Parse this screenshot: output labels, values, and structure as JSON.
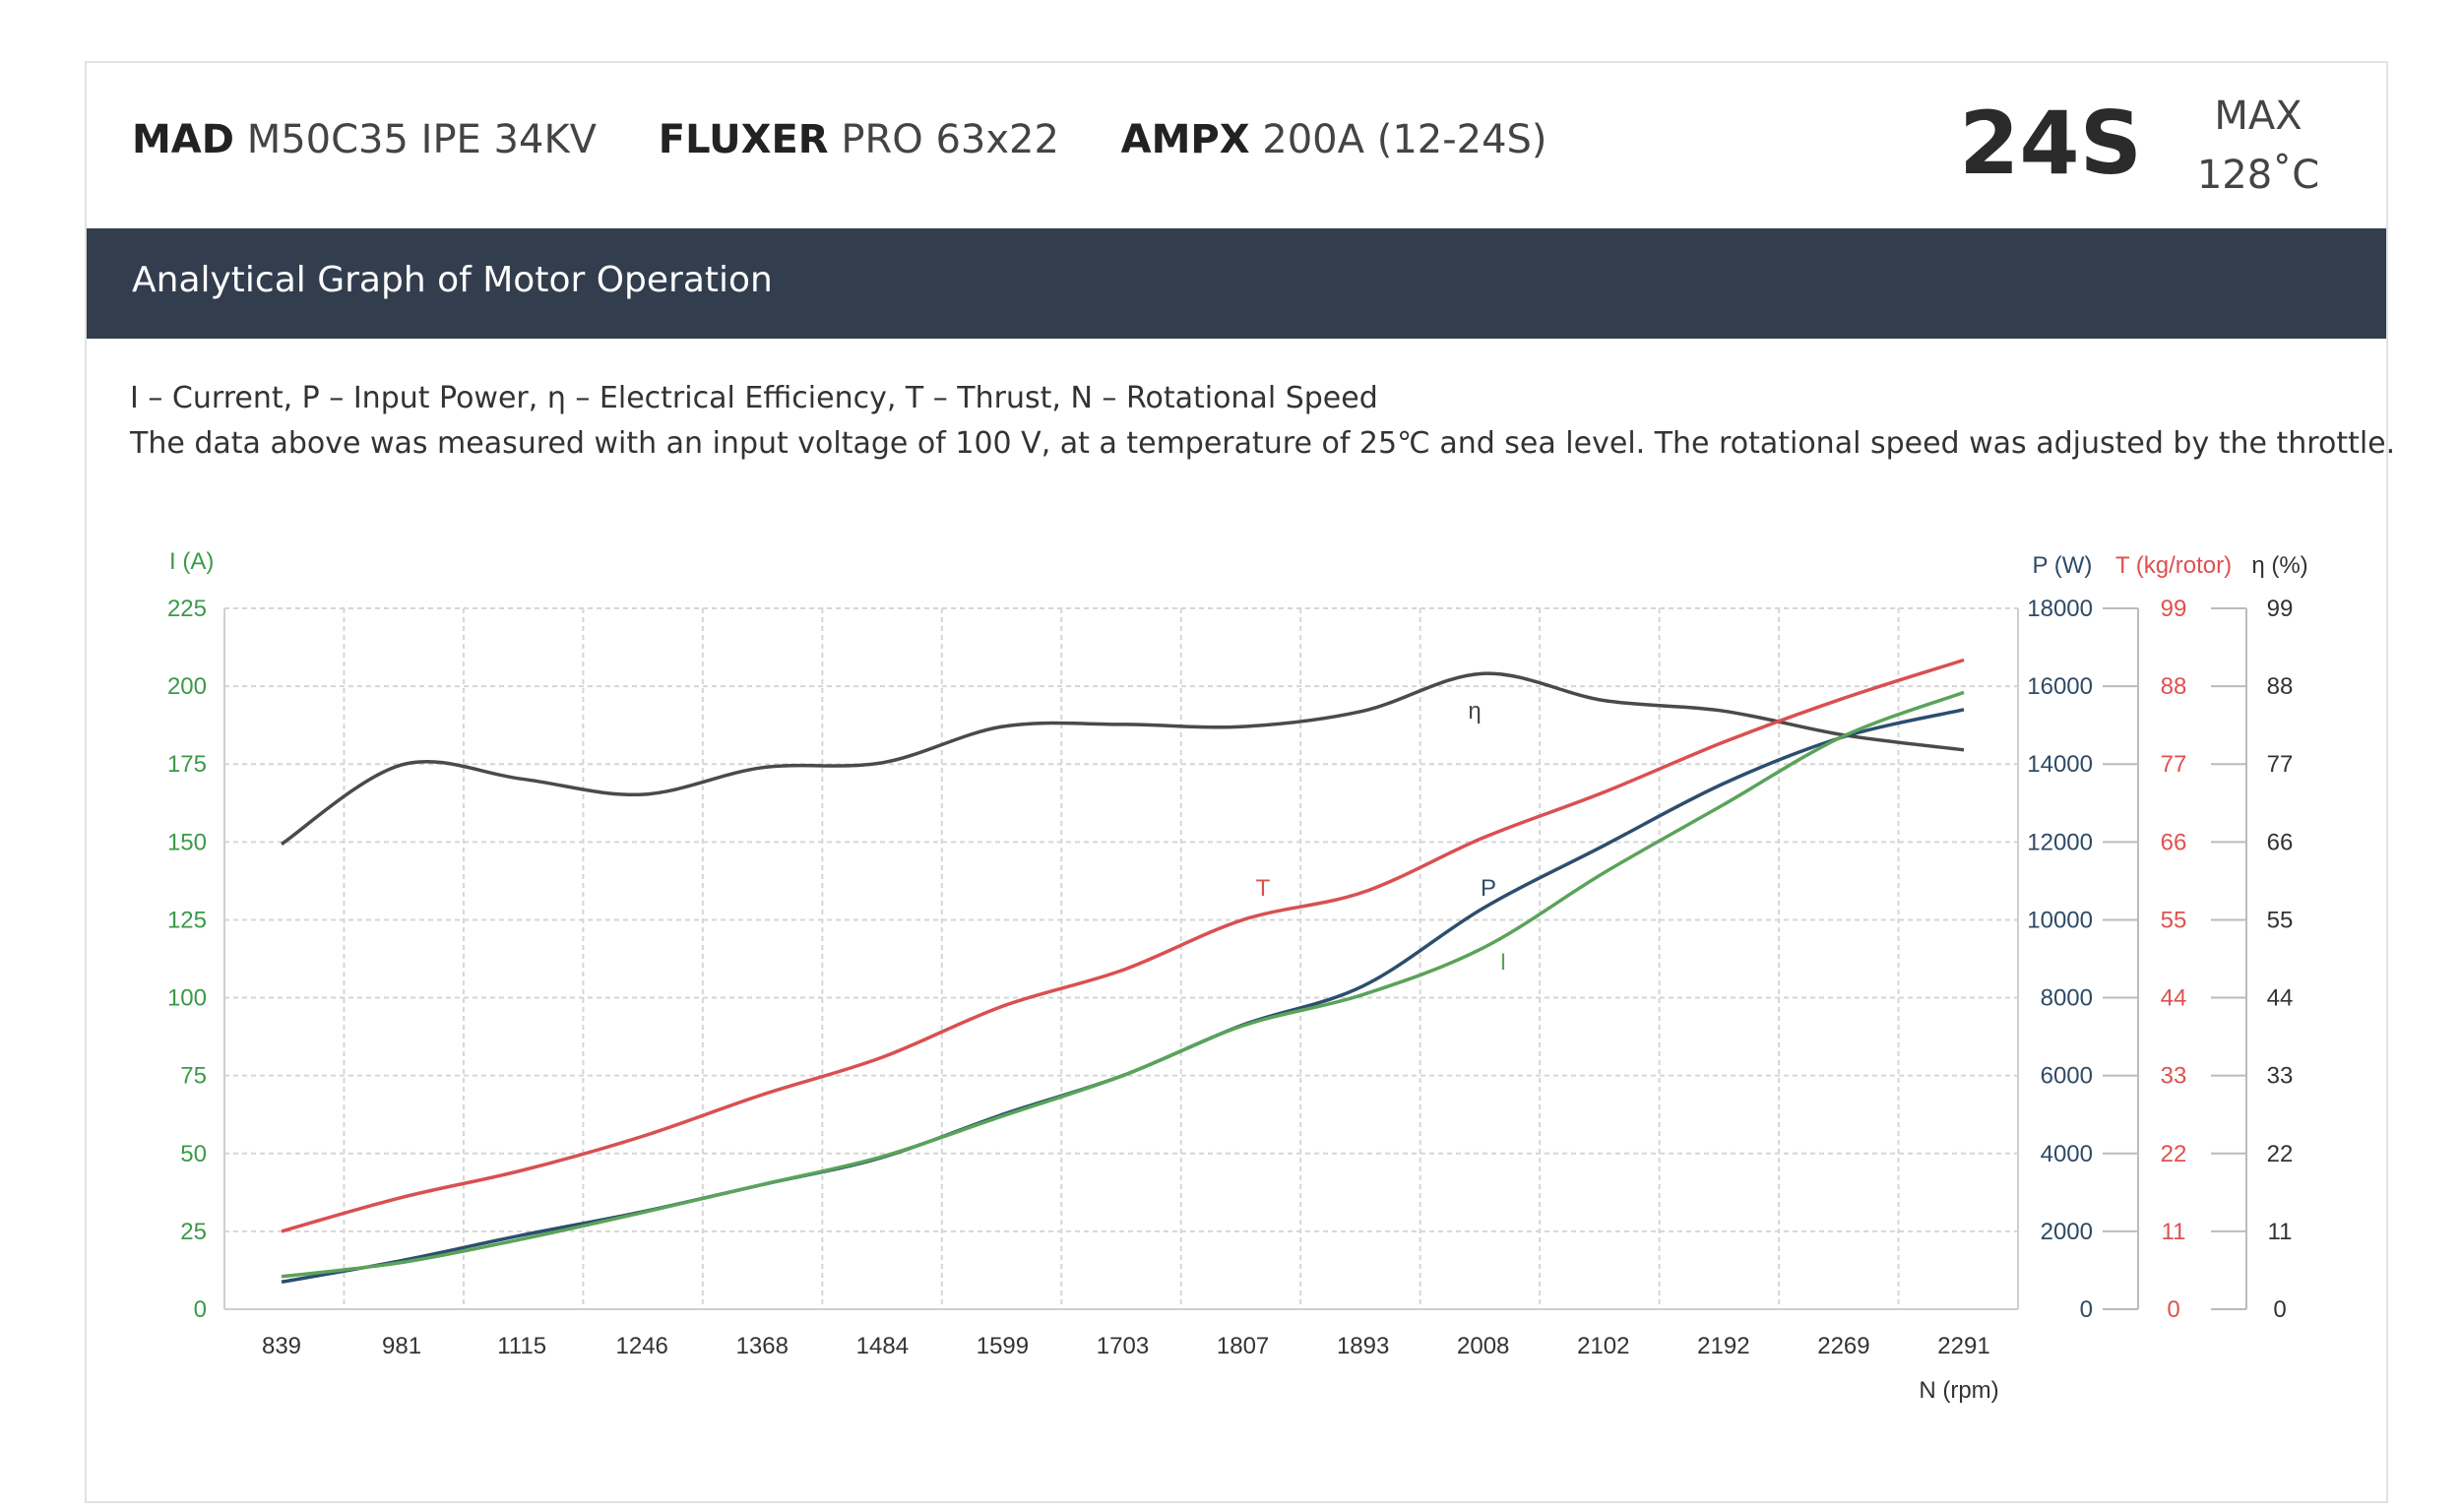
{
  "header": {
    "specs": [
      {
        "brand": "MAD",
        "model": "M50C35 IPE 34KV"
      },
      {
        "brand": "FLUXER",
        "model": "PRO 63x22"
      },
      {
        "brand": "AMPX",
        "model": "200A (12-24S)"
      }
    ],
    "cells": "24S",
    "max_label": "MAX",
    "max_temp": "128˚C"
  },
  "section_title": "Analytical Graph of Motor Operation",
  "legend_line1": "I – Current, P – Input Power, η – Electrical Efficiency, T – Thrust,   N – Rotational Speed",
  "legend_line2": "The data above was measured with an input voltage of 100 V, at a temperature of 25℃ and sea level. The rotational speed was adjusted by the throttle.",
  "chart_data": {
    "type": "line",
    "categories": [
      "839",
      "981",
      "1115",
      "1246",
      "1368",
      "1484",
      "1599",
      "1703",
      "1807",
      "1893",
      "2008",
      "2102",
      "2192",
      "2269",
      "2291"
    ],
    "xlabel": "N (rpm)",
    "axes": {
      "I": {
        "label": "I (A)",
        "ticks": [
          "0",
          "25",
          "50",
          "75",
          "100",
          "125",
          "150",
          "175",
          "200",
          "225"
        ],
        "range": [
          0,
          225
        ],
        "color": "#3a9a48"
      },
      "P": {
        "label": "P (W)",
        "ticks": [
          "0",
          "2000",
          "4000",
          "6000",
          "8000",
          "10000",
          "12000",
          "14000",
          "16000",
          "18000"
        ],
        "range": [
          0,
          18000
        ],
        "color": "#2e4a66"
      },
      "T": {
        "label": "T (kg/rotor)",
        "ticks": [
          "0",
          "11",
          "22",
          "33",
          "44",
          "55",
          "66",
          "77",
          "88",
          "99"
        ],
        "range": [
          0,
          99
        ],
        "color": "#e05050"
      },
      "eta": {
        "label": "η (%)",
        "ticks": [
          "0",
          "11",
          "22",
          "33",
          "44",
          "55",
          "66",
          "77",
          "88",
          "99"
        ],
        "range": [
          0,
          99
        ],
        "color": "#333333"
      }
    },
    "series": [
      {
        "name": "η",
        "axis": "eta",
        "color": "#4a4a4a",
        "values": [
          65.7,
          76.9,
          74.9,
          72.7,
          76.5,
          77.2,
          82.3,
          82.6,
          82.3,
          84.5,
          89.8,
          86.0,
          84.5,
          81.1,
          79.0
        ]
      },
      {
        "name": "T",
        "axis": "T",
        "color": "#d95050",
        "values": [
          11.0,
          15.8,
          19.6,
          24.4,
          30.3,
          35.6,
          42.8,
          47.9,
          55.0,
          58.9,
          66.6,
          73.0,
          80.1,
          86.3,
          91.7
        ]
      },
      {
        "name": "P",
        "axis": "P",
        "color": "#2c4e6e",
        "values": [
          700,
          1250,
          1900,
          2500,
          3200,
          3900,
          5000,
          6000,
          7300,
          8300,
          10300,
          11900,
          13500,
          14700,
          15400
        ]
      },
      {
        "name": "I",
        "axis": "I",
        "color": "#5aa35a",
        "values": [
          10.5,
          15.0,
          22.5,
          31.0,
          40.0,
          49.0,
          62.0,
          75.0,
          91.0,
          101.0,
          116.0,
          140.0,
          162.0,
          184.0,
          198.0
        ]
      }
    ],
    "grid": true
  }
}
